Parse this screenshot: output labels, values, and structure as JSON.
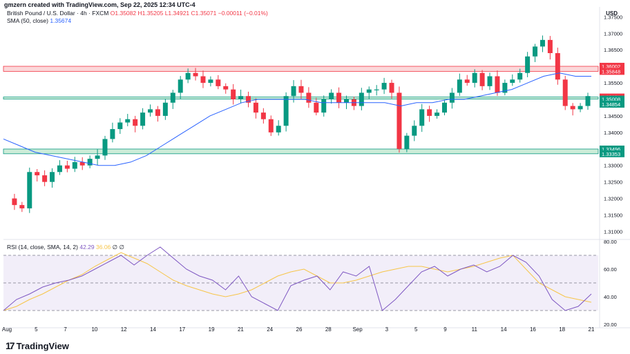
{
  "caption": "gmzern created with TradingView.com, Sep 22, 2025 12:34 UTC-4",
  "legend": {
    "symbol": "British Pound / U.S. Dollar · 4h · FXCM",
    "ohlc": "O1.35082 H1.35205 L1.34921 C1.35071 −0.00011 (−0.01%)",
    "sma_label": "SMA (50, close)",
    "sma_value": "1.35674",
    "rsi_label": "RSI (14, close, SMA, 14, 2)",
    "rsi_value": "42.29",
    "rsi_sma_value": "36.06",
    "rsi_extra": "∅ ∅"
  },
  "currency": "USD",
  "branding": "TradingView",
  "colors": {
    "up": "#089981",
    "down": "#f23645",
    "sma": "#2962ff",
    "rsi": "#7e57c2",
    "rsi_sma": "#f7c548",
    "support_zone": "#b7e4c7",
    "resistance_zone": "#f9c6c9"
  },
  "chart_data": [
    {
      "type": "candlestick",
      "title": "",
      "ylim": [
        1.308,
        1.378
      ],
      "y_ticks": [
        "1.37500",
        "1.37000",
        "1.36500",
        "1.36000",
        "1.35500",
        "1.35000",
        "1.34500",
        "1.34000",
        "1.33500",
        "1.33000",
        "1.32500",
        "1.32000",
        "1.31500",
        "1.31000"
      ],
      "x_ticks": [
        "Aug",
        "5",
        "7",
        "10",
        "12",
        "14",
        "17",
        "19",
        "21",
        "24",
        "26",
        "28",
        "Sep",
        "3",
        "5",
        "9",
        "11",
        "14",
        "16",
        "18",
        "21"
      ],
      "zones": [
        {
          "kind": "resistance",
          "top": 1.36002,
          "bottom": 1.35848
        },
        {
          "kind": "support",
          "top": 1.35071,
          "bottom": 1.35008
        },
        {
          "kind": "support",
          "top": 1.34854,
          "bottom": 1.34854
        },
        {
          "kind": "support",
          "top": 1.33496,
          "bottom": 1.33353
        }
      ],
      "price_tags": [
        {
          "label": "1.36002",
          "value": 1.36002,
          "color": "#f23645"
        },
        {
          "label": "1.35848",
          "value": 1.35848,
          "color": "#f23645"
        },
        {
          "label": "1.35071",
          "value": 1.35071,
          "color": "#f23645",
          "extra": "25:18"
        },
        {
          "label": "1.35008",
          "value": 1.35008,
          "color": "#089981"
        },
        {
          "label": "1.34854",
          "value": 1.34854,
          "color": "#089981"
        },
        {
          "label": "1.33496",
          "value": 1.33496,
          "color": "#089981"
        },
        {
          "label": "1.33353",
          "value": 1.33353,
          "color": "#089981"
        }
      ],
      "close_path": [
        1.32,
        1.318,
        1.317,
        1.328,
        1.327,
        1.325,
        1.328,
        1.33,
        1.329,
        1.331,
        1.33,
        1.332,
        1.333,
        1.338,
        1.341,
        1.343,
        1.344,
        1.342,
        1.346,
        1.347,
        1.345,
        1.349,
        1.352,
        1.356,
        1.358,
        1.357,
        1.355,
        1.356,
        1.354,
        1.353,
        1.35,
        1.351,
        1.349,
        1.346,
        1.344,
        1.34,
        1.342,
        1.351,
        1.354,
        1.352,
        1.349,
        1.346,
        1.35,
        1.352,
        1.349,
        1.35,
        1.348,
        1.352,
        1.353,
        1.353,
        1.355,
        1.352,
        1.335,
        1.339,
        1.342,
        1.347,
        1.345,
        1.346,
        1.349,
        1.352,
        1.356,
        1.355,
        1.358,
        1.354,
        1.357,
        1.352,
        1.355,
        1.356,
        1.358,
        1.363,
        1.366,
        1.368,
        1.364,
        1.356,
        1.348,
        1.347,
        1.348,
        1.351
      ],
      "sma50": [
        1.338,
        1.336,
        1.334,
        1.333,
        1.332,
        1.331,
        1.33,
        1.33,
        1.331,
        1.333,
        1.336,
        1.339,
        1.342,
        1.345,
        1.347,
        1.349,
        1.35,
        1.35,
        1.35,
        1.35,
        1.349,
        1.349,
        1.349,
        1.349,
        1.349,
        1.348,
        1.349,
        1.349,
        1.35,
        1.35,
        1.351,
        1.352,
        1.353,
        1.355,
        1.357,
        1.358,
        1.357,
        1.357
      ]
    },
    {
      "type": "line",
      "title": "",
      "ylim": [
        20,
        80
      ],
      "y_ticks": [
        "80.00",
        "60.00",
        "40.00",
        "20.00"
      ],
      "bands": [
        70,
        50,
        30
      ],
      "rsi": [
        30,
        38,
        42,
        47,
        50,
        52,
        55,
        60,
        65,
        70,
        63,
        70,
        76,
        68,
        60,
        55,
        52,
        45,
        55,
        40,
        35,
        30,
        48,
        52,
        55,
        45,
        58,
        55,
        62,
        30,
        38,
        48,
        58,
        62,
        55,
        60,
        63,
        58,
        62,
        70,
        65,
        55,
        38,
        30,
        33,
        42
      ],
      "rsi_sma": [
        30,
        33,
        38,
        42,
        47,
        52,
        56,
        62,
        67,
        72,
        68,
        64,
        58,
        52,
        48,
        45,
        42,
        40,
        42,
        45,
        50,
        55,
        58,
        60,
        55,
        50,
        50,
        52,
        55,
        58,
        60,
        62,
        62,
        60,
        58,
        60,
        62,
        65,
        68,
        70,
        60,
        50,
        45,
        40,
        38,
        36
      ]
    }
  ]
}
